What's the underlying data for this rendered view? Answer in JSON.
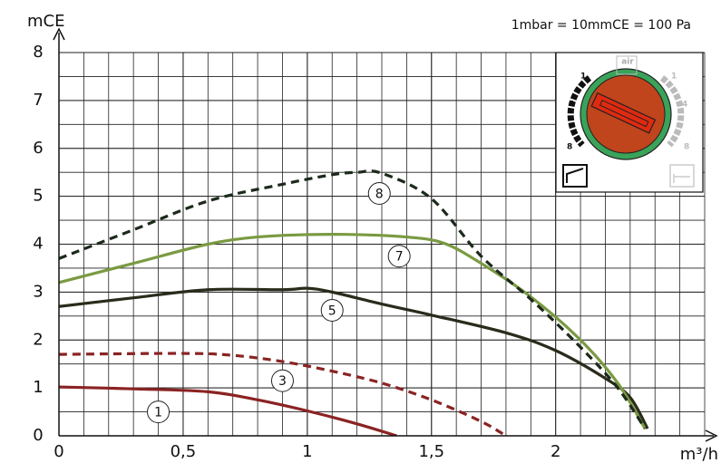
{
  "chart_data": {
    "type": "line",
    "y_label": "mCE",
    "x_label": "m³/h",
    "note": "1mbar = 10mmCE = 100 Pa",
    "xlim": [
      0,
      2.6
    ],
    "ylim": [
      0,
      8
    ],
    "xticks": [
      0,
      {
        "value": 0.5,
        "label": "0,5"
      },
      1,
      {
        "value": 1.5,
        "label": "1,5"
      },
      2
    ],
    "yticks": [
      0,
      1,
      2,
      3,
      4,
      5,
      6,
      7,
      8
    ],
    "grid": true,
    "series": [
      {
        "name": "1",
        "color": "#8b2323",
        "dashed": false,
        "x": [
          0,
          0.3,
          0.6,
          0.8,
          1.0,
          1.2,
          1.36
        ],
        "values": [
          1.02,
          0.98,
          0.92,
          0.75,
          0.52,
          0.25,
          0
        ]
      },
      {
        "name": "3",
        "color": "#8b2323",
        "dashed": true,
        "x": [
          0,
          0.5,
          0.7,
          0.9,
          1.1,
          1.3,
          1.5,
          1.7,
          1.8
        ],
        "values": [
          1.7,
          1.72,
          1.68,
          1.55,
          1.35,
          1.1,
          0.75,
          0.3,
          0
        ]
      },
      {
        "name": "5",
        "color": "#2b2b1c",
        "dashed": false,
        "x": [
          0,
          0.3,
          0.6,
          0.9,
          1.0,
          1.1,
          1.3,
          1.5,
          1.8,
          2.0,
          2.2,
          2.3,
          2.37
        ],
        "values": [
          2.7,
          2.88,
          3.05,
          3.05,
          3.08,
          3.0,
          2.75,
          2.52,
          2.15,
          1.78,
          1.2,
          0.8,
          0.15
        ]
      },
      {
        "name": "7",
        "color": "#7a9a42",
        "dashed": false,
        "x": [
          0,
          0.3,
          0.6,
          0.8,
          1.0,
          1.2,
          1.4,
          1.55,
          1.7,
          1.9,
          2.1,
          2.25,
          2.36
        ],
        "values": [
          3.2,
          3.6,
          4.0,
          4.15,
          4.2,
          4.2,
          4.15,
          4.02,
          3.6,
          2.9,
          2.0,
          1.1,
          0.15
        ]
      },
      {
        "name": "8",
        "color": "#1c2a1c",
        "dashed": true,
        "x": [
          0,
          0.3,
          0.6,
          0.9,
          1.1,
          1.2,
          1.3,
          1.5,
          1.7,
          1.9,
          2.1,
          2.25,
          2.36
        ],
        "values": [
          3.7,
          4.3,
          4.9,
          5.25,
          5.45,
          5.5,
          5.48,
          4.95,
          3.75,
          2.85,
          1.85,
          1.0,
          0.15
        ]
      }
    ]
  },
  "dial": {
    "scale": [
      "1",
      "4",
      "8"
    ],
    "icon": "air"
  }
}
